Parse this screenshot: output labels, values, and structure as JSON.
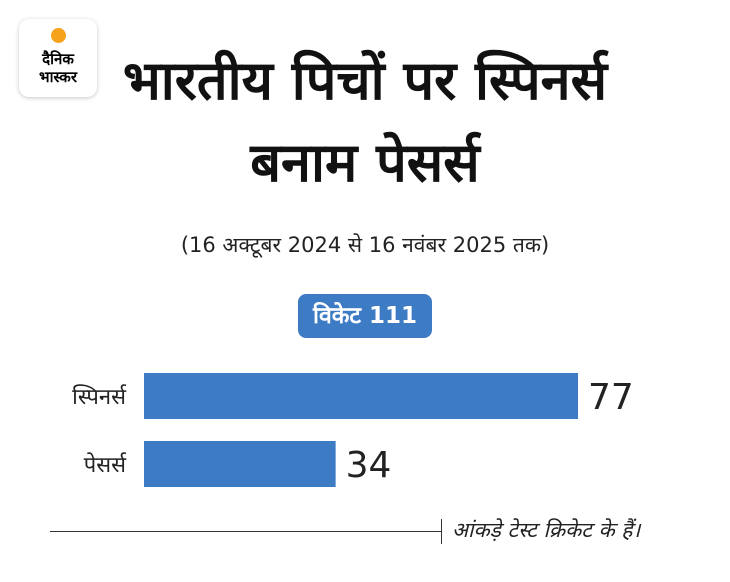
{
  "brand": {
    "logo_line1": "दैनिक",
    "logo_line2": "भास्कर",
    "accent_dot_color": "#f7a21b"
  },
  "header": {
    "title": "भारतीय पिचों पर स्पिनर्स बनाम पेसर्स",
    "subtitle": "(16 अक्टूबर 2024 से 16 नवंबर 2025 तक)"
  },
  "badge": {
    "label": "विकेट 111",
    "color": "#3d7cc4"
  },
  "chart_data": {
    "type": "bar",
    "orientation": "horizontal",
    "categories": [
      "स्पिनर्स",
      "पेसर्स"
    ],
    "values": [
      77,
      34
    ],
    "xlim": [
      0,
      77
    ],
    "bar_color": "#3d7cc4",
    "grid": false
  },
  "footer": {
    "note": "आंकड़े टेस्ट क्रिकेट के हैं।"
  }
}
